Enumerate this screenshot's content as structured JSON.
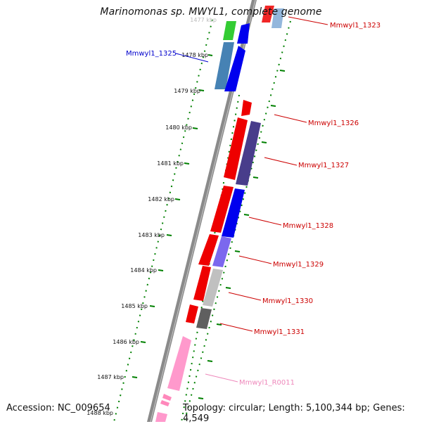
{
  "title": "Marinomonas sp. MWYL1, complete genome",
  "accession": "Accession: NC_009654",
  "topology": "Topology: circular; Length: 5,100,344 bp; Genes: 4,549",
  "colors": {
    "backbone": "#888888",
    "ticks": "#008000",
    "label_red": "#cc0000",
    "label_blue": "#0000cc",
    "label_pink": "#ee88bb"
  },
  "kbp_ticks": [
    "1477 kbp",
    "1478 kbp",
    "1479 kbp",
    "1480 kbp",
    "1481 kbp",
    "1482 kbp",
    "1483 kbp",
    "1484 kbp",
    "1485 kbp",
    "1486 kbp",
    "1487 kbp",
    "1488 kbp"
  ],
  "gene_labels": [
    {
      "text": "Mmwyl1_1323",
      "color": "#cc0000"
    },
    {
      "text": "Mmwyl1_1325",
      "color": "#0000cc"
    },
    {
      "text": "Mmwyl1_1326",
      "color": "#cc0000"
    },
    {
      "text": "Mmwyl1_1327",
      "color": "#cc0000"
    },
    {
      "text": "Mmwyl1_1328",
      "color": "#cc0000"
    },
    {
      "text": "Mmwyl1_1329",
      "color": "#cc0000"
    },
    {
      "text": "Mmwyl1_1330",
      "color": "#cc0000"
    },
    {
      "text": "Mmwyl1_1331",
      "color": "#cc0000"
    },
    {
      "text": "Mmwyl1_R0011",
      "color": "#ee88bb"
    }
  ]
}
